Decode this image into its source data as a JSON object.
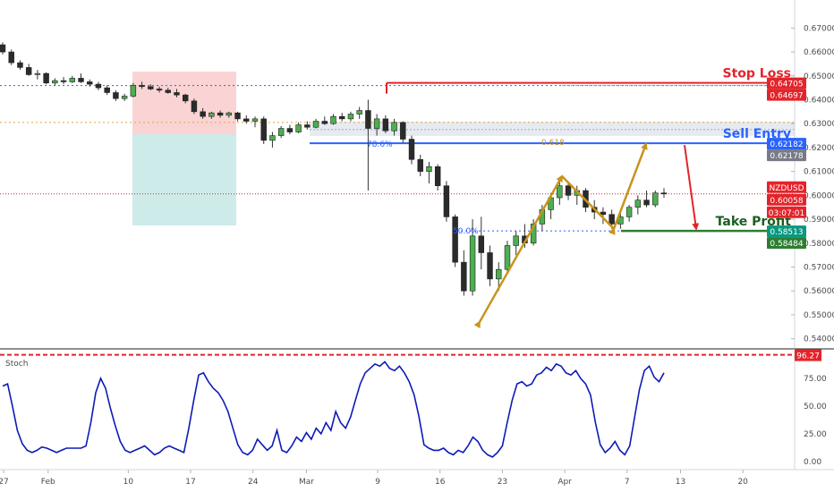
{
  "chart_data": {
    "type": "candlestick",
    "symbol": "NZDUSD",
    "price_axis": {
      "ticks": [
        0.54,
        0.55,
        0.56,
        0.57,
        0.58,
        0.59,
        0.6,
        0.61,
        0.62,
        0.63,
        0.64,
        0.65,
        0.66,
        0.67
      ],
      "tick_labels": [
        "0.54000",
        "0.55000",
        "0.56000",
        "0.57000",
        "0.58000",
        "0.59000",
        "0.60000",
        "0.61000",
        "0.62000",
        "0.63000",
        "0.64000",
        "0.65000",
        "0.66000",
        "0.67000"
      ],
      "ylim": [
        0.535,
        0.675
      ]
    },
    "x_axis": {
      "labels": [
        "27",
        "Feb",
        "10",
        "17",
        "24",
        "Mar",
        "9",
        "16",
        "23",
        "Apr",
        "7",
        "13",
        "20"
      ],
      "label_day_index": [
        0,
        5,
        14,
        21,
        28,
        34,
        42,
        49,
        56,
        63,
        70,
        76,
        83
      ],
      "xlim": [
        0,
        87
      ]
    },
    "candles": [
      {
        "o": 0.663,
        "h": 0.664,
        "l": 0.659,
        "c": 0.66
      },
      {
        "o": 0.66,
        "h": 0.661,
        "l": 0.6545,
        "c": 0.6555
      },
      {
        "o": 0.6555,
        "h": 0.6565,
        "l": 0.6525,
        "c": 0.6535
      },
      {
        "o": 0.6535,
        "h": 0.655,
        "l": 0.65,
        "c": 0.6505
      },
      {
        "o": 0.6505,
        "h": 0.6525,
        "l": 0.6485,
        "c": 0.651
      },
      {
        "o": 0.651,
        "h": 0.6515,
        "l": 0.6465,
        "c": 0.647
      },
      {
        "o": 0.647,
        "h": 0.649,
        "l": 0.646,
        "c": 0.648
      },
      {
        "o": 0.648,
        "h": 0.6495,
        "l": 0.6465,
        "c": 0.6475
      },
      {
        "o": 0.6475,
        "h": 0.65,
        "l": 0.647,
        "c": 0.649
      },
      {
        "o": 0.649,
        "h": 0.651,
        "l": 0.647,
        "c": 0.6475
      },
      {
        "o": 0.6475,
        "h": 0.6485,
        "l": 0.6455,
        "c": 0.6465
      },
      {
        "o": 0.6465,
        "h": 0.6475,
        "l": 0.644,
        "c": 0.645
      },
      {
        "o": 0.645,
        "h": 0.646,
        "l": 0.642,
        "c": 0.643
      },
      {
        "o": 0.643,
        "h": 0.644,
        "l": 0.6395,
        "c": 0.6405
      },
      {
        "o": 0.6405,
        "h": 0.6425,
        "l": 0.6395,
        "c": 0.6415
      },
      {
        "o": 0.6415,
        "h": 0.647,
        "l": 0.641,
        "c": 0.646
      },
      {
        "o": 0.646,
        "h": 0.6475,
        "l": 0.6445,
        "c": 0.6455
      },
      {
        "o": 0.6455,
        "h": 0.6465,
        "l": 0.644,
        "c": 0.6445
      },
      {
        "o": 0.6445,
        "h": 0.6455,
        "l": 0.643,
        "c": 0.644
      },
      {
        "o": 0.644,
        "h": 0.645,
        "l": 0.6425,
        "c": 0.643
      },
      {
        "o": 0.643,
        "h": 0.6445,
        "l": 0.641,
        "c": 0.642
      },
      {
        "o": 0.642,
        "h": 0.6425,
        "l": 0.6385,
        "c": 0.6395
      },
      {
        "o": 0.6395,
        "h": 0.6405,
        "l": 0.634,
        "c": 0.635
      },
      {
        "o": 0.635,
        "h": 0.6365,
        "l": 0.632,
        "c": 0.633
      },
      {
        "o": 0.633,
        "h": 0.635,
        "l": 0.632,
        "c": 0.6345
      },
      {
        "o": 0.6345,
        "h": 0.6355,
        "l": 0.6325,
        "c": 0.6335
      },
      {
        "o": 0.6335,
        "h": 0.635,
        "l": 0.6325,
        "c": 0.6345
      },
      {
        "o": 0.6345,
        "h": 0.635,
        "l": 0.631,
        "c": 0.632
      },
      {
        "o": 0.632,
        "h": 0.6335,
        "l": 0.63,
        "c": 0.631
      },
      {
        "o": 0.631,
        "h": 0.633,
        "l": 0.6285,
        "c": 0.632
      },
      {
        "o": 0.632,
        "h": 0.633,
        "l": 0.6215,
        "c": 0.623
      },
      {
        "o": 0.623,
        "h": 0.6265,
        "l": 0.62,
        "c": 0.625
      },
      {
        "o": 0.625,
        "h": 0.629,
        "l": 0.624,
        "c": 0.628
      },
      {
        "o": 0.628,
        "h": 0.6295,
        "l": 0.6255,
        "c": 0.6265
      },
      {
        "o": 0.6265,
        "h": 0.6305,
        "l": 0.626,
        "c": 0.6295
      },
      {
        "o": 0.6295,
        "h": 0.631,
        "l": 0.6275,
        "c": 0.6285
      },
      {
        "o": 0.6285,
        "h": 0.632,
        "l": 0.628,
        "c": 0.631
      },
      {
        "o": 0.631,
        "h": 0.633,
        "l": 0.6295,
        "c": 0.63
      },
      {
        "o": 0.63,
        "h": 0.634,
        "l": 0.6295,
        "c": 0.633
      },
      {
        "o": 0.633,
        "h": 0.6345,
        "l": 0.631,
        "c": 0.632
      },
      {
        "o": 0.632,
        "h": 0.635,
        "l": 0.631,
        "c": 0.634
      },
      {
        "o": 0.634,
        "h": 0.637,
        "l": 0.632,
        "c": 0.6355
      },
      {
        "o": 0.6355,
        "h": 0.64,
        "l": 0.602,
        "c": 0.628
      },
      {
        "o": 0.628,
        "h": 0.634,
        "l": 0.625,
        "c": 0.632
      },
      {
        "o": 0.632,
        "h": 0.6335,
        "l": 0.626,
        "c": 0.627
      },
      {
        "o": 0.627,
        "h": 0.632,
        "l": 0.625,
        "c": 0.6305
      },
      {
        "o": 0.6305,
        "h": 0.631,
        "l": 0.622,
        "c": 0.6235
      },
      {
        "o": 0.6235,
        "h": 0.625,
        "l": 0.613,
        "c": 0.615
      },
      {
        "o": 0.615,
        "h": 0.617,
        "l": 0.608,
        "c": 0.61
      },
      {
        "o": 0.61,
        "h": 0.614,
        "l": 0.605,
        "c": 0.612
      },
      {
        "o": 0.612,
        "h": 0.613,
        "l": 0.602,
        "c": 0.604
      },
      {
        "o": 0.604,
        "h": 0.606,
        "l": 0.589,
        "c": 0.591
      },
      {
        "o": 0.591,
        "h": 0.592,
        "l": 0.57,
        "c": 0.572
      },
      {
        "o": 0.572,
        "h": 0.577,
        "l": 0.558,
        "c": 0.56
      },
      {
        "o": 0.56,
        "h": 0.59,
        "l": 0.558,
        "c": 0.583
      },
      {
        "o": 0.583,
        "h": 0.591,
        "l": 0.569,
        "c": 0.576
      },
      {
        "o": 0.576,
        "h": 0.579,
        "l": 0.562,
        "c": 0.565
      },
      {
        "o": 0.565,
        "h": 0.572,
        "l": 0.56,
        "c": 0.569
      },
      {
        "o": 0.569,
        "h": 0.581,
        "l": 0.567,
        "c": 0.579
      },
      {
        "o": 0.579,
        "h": 0.585,
        "l": 0.575,
        "c": 0.583
      },
      {
        "o": 0.583,
        "h": 0.588,
        "l": 0.578,
        "c": 0.58
      },
      {
        "o": 0.58,
        "h": 0.59,
        "l": 0.579,
        "c": 0.588
      },
      {
        "o": 0.588,
        "h": 0.596,
        "l": 0.585,
        "c": 0.594
      },
      {
        "o": 0.594,
        "h": 0.601,
        "l": 0.59,
        "c": 0.599
      },
      {
        "o": 0.599,
        "h": 0.606,
        "l": 0.596,
        "c": 0.604
      },
      {
        "o": 0.604,
        "h": 0.605,
        "l": 0.598,
        "c": 0.6
      },
      {
        "o": 0.6,
        "h": 0.604,
        "l": 0.596,
        "c": 0.602
      },
      {
        "o": 0.602,
        "h": 0.603,
        "l": 0.593,
        "c": 0.595
      },
      {
        "o": 0.595,
        "h": 0.598,
        "l": 0.59,
        "c": 0.593
      },
      {
        "o": 0.593,
        "h": 0.595,
        "l": 0.588,
        "c": 0.592
      },
      {
        "o": 0.592,
        "h": 0.594,
        "l": 0.586,
        "c": 0.588
      },
      {
        "o": 0.588,
        "h": 0.593,
        "l": 0.586,
        "c": 0.591
      },
      {
        "o": 0.591,
        "h": 0.596,
        "l": 0.589,
        "c": 0.595
      },
      {
        "o": 0.595,
        "h": 0.6,
        "l": 0.592,
        "c": 0.598
      },
      {
        "o": 0.598,
        "h": 0.602,
        "l": 0.595,
        "c": 0.596
      },
      {
        "o": 0.596,
        "h": 0.602,
        "l": 0.595,
        "c": 0.601
      },
      {
        "o": 0.601,
        "h": 0.603,
        "l": 0.599,
        "c": 0.6006
      }
    ],
    "levels": {
      "stop_loss": 0.64705,
      "stop_loss_2": 0.64697,
      "sell_entry": 0.62182,
      "sell_entry_2": 0.62178,
      "take_profit": 0.58513,
      "take_profit_2": 0.58484,
      "current_price": 0.60058
    },
    "badges": [
      {
        "text": "0.64705",
        "price": 0.64705,
        "color": "#e3242b"
      },
      {
        "text": "0.64697",
        "price": 0.64697,
        "color": "#e3242b"
      },
      {
        "text": "0.62182",
        "price": 0.62182,
        "color": "#2962ff"
      },
      {
        "text": "0.62178",
        "price": 0.62178,
        "color": "#787b86"
      },
      {
        "text": "NZDUSD",
        "price": 0.60058,
        "color": "#e3242b",
        "shift": -8
      },
      {
        "text": "0.60058",
        "price": 0.60058,
        "color": "#e3242b",
        "shift": 6
      },
      {
        "text": "03:07:01",
        "price": 0.60058,
        "color": "#e3242b",
        "shift": 20
      },
      {
        "text": "0.58513",
        "price": 0.58513,
        "color": "#089981"
      },
      {
        "text": "0.58484",
        "price": 0.58484,
        "color": "#2e7d32"
      }
    ],
    "annotations": {
      "stop_loss_label": "Stop Loss",
      "sell_entry_label": "Sell Entry",
      "take_profit_label": "Take Profit",
      "fib_786": "78.6%",
      "fib_618": "0.618",
      "fib_50": "50.0%"
    },
    "stoch": {
      "label": "Stoch",
      "ticks": [
        0,
        25,
        50,
        75
      ],
      "tick_labels": [
        "0.00",
        "25.00",
        "50.00",
        "75.00"
      ],
      "level_label": "96.27",
      "level": 96.27,
      "ylim": [
        -5,
        100
      ],
      "values": [
        68,
        70,
        50,
        28,
        16,
        10,
        8,
        10,
        13,
        12,
        10,
        8,
        10,
        12,
        12,
        12,
        12,
        14,
        35,
        62,
        75,
        66,
        48,
        32,
        18,
        10,
        8,
        10,
        12,
        14,
        10,
        6,
        8,
        12,
        14,
        12,
        10,
        8,
        30,
        55,
        78,
        80,
        72,
        66,
        62,
        55,
        45,
        30,
        15,
        8,
        6,
        10,
        20,
        15,
        10,
        14,
        28,
        10,
        8,
        14,
        22,
        18,
        26,
        20,
        30,
        25,
        35,
        28,
        45,
        35,
        30,
        40,
        55,
        70,
        80,
        84,
        88,
        86,
        90,
        84,
        82,
        86,
        80,
        72,
        60,
        40,
        15,
        12,
        10,
        10,
        12,
        8,
        6,
        10,
        8,
        14,
        22,
        18,
        10,
        6,
        4,
        8,
        14,
        35,
        55,
        70,
        72,
        68,
        70,
        78,
        80,
        85,
        82,
        88,
        86,
        80,
        78,
        82,
        75,
        70,
        60,
        35,
        15,
        8,
        12,
        18,
        10,
        6,
        14,
        40,
        65,
        82,
        86,
        76,
        72,
        80
      ]
    }
  }
}
